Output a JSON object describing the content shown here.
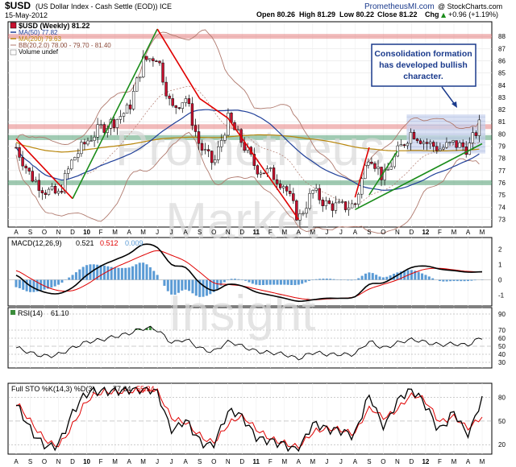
{
  "header": {
    "symbol": "$USD",
    "description": "(US Dollar Index - Cash Settle (EOD)) ICE",
    "date": "15-May-2012",
    "open": "Open 80.26",
    "high": "High 81.29",
    "low": "Low 80.22",
    "close": "Close 81.22",
    "chg_label": "Chg",
    "chg_value": "+0.96 (+1.19%)",
    "chg_arrow": "▲",
    "site": "PrometheusMI.com",
    "copyright": "@ StockCharts.com"
  },
  "legend": {
    "price": "$USD (Weekly) 81.22",
    "ma50": "MA(50) 77.82",
    "ma200": "MA(200) 79.63",
    "bb": "BB(20,2.0) 78.00 - 79.70 - 81.40",
    "volume": "Volume undef"
  },
  "annotation": "Consolidation formation has developed bullish character.",
  "annotation_lines": [
    "Consolidation formation",
    "has developed bullish",
    "character."
  ],
  "watermark": [
    "Prometheus",
    "Market",
    "Insight"
  ],
  "panels": {
    "macd": {
      "label": "MACD(12,26,9)",
      "v1": "0.521",
      "v2": "0.512",
      "v3": "0.009"
    },
    "rsi": {
      "label": "RSI(14)",
      "v1": "61.10"
    },
    "sto": {
      "label": "Full STO %K(14,3) %D(3)",
      "v1": "77.64",
      "v2": "55.34"
    }
  },
  "colors": {
    "up": "#ffffff",
    "down": "#c8102e",
    "candle_outline": "#000000",
    "ma50": "#1f3f99",
    "ma200": "#b8860b",
    "bb": "#b07a6e",
    "support_band": "#2e8b57",
    "resistance_band": "#e06666",
    "trend_red": "#e00000",
    "trend_green": "#1a8c1a",
    "annotation_border": "#1a3a8c",
    "annotation_text": "#1a3a8c",
    "macd_line": "#000000",
    "signal_line": "#e00000",
    "histogram": "#5b9bd5",
    "rsi_line": "#000000",
    "rsi_fill": "#3a8c3a",
    "sto_k": "#000000",
    "sto_d": "#e00000"
  },
  "chart_data": [
    {
      "type": "candlestick",
      "title": "$USD (Weekly) 81.22",
      "y_ticks": [
        "73",
        "74",
        "75",
        "76",
        "77",
        "78",
        "79",
        "80",
        "81",
        "82",
        "83",
        "84",
        "85",
        "86",
        "87",
        "88"
      ],
      "ylim": [
        72.5,
        89
      ],
      "x_ticks": [
        "A",
        "S",
        "O",
        "N",
        "D",
        "10",
        "F",
        "M",
        "A",
        "M",
        "J",
        "J",
        "A",
        "S",
        "O",
        "N",
        "D",
        "11",
        "F",
        "M",
        "A",
        "M",
        "J",
        "J",
        "A",
        "S",
        "O",
        "N",
        "D",
        "12",
        "F",
        "M",
        "A",
        "M"
      ],
      "close_path": [
        {
          "date": "2009-08",
          "close": 78.9
        },
        {
          "date": "2009-09",
          "close": 76.6
        },
        {
          "date": "2009-10",
          "close": 75.4
        },
        {
          "date": "2009-11",
          "close": 75.0
        },
        {
          "date": "2009-12",
          "close": 77.9
        },
        {
          "date": "2010-01",
          "close": 79.4
        },
        {
          "date": "2010-02",
          "close": 80.5
        },
        {
          "date": "2010-03",
          "close": 81.1
        },
        {
          "date": "2010-04",
          "close": 82.1
        },
        {
          "date": "2010-05",
          "close": 86.0
        },
        {
          "date": "2010-06",
          "close": 86.4
        },
        {
          "date": "2010-07",
          "close": 82.0
        },
        {
          "date": "2010-08",
          "close": 83.0
        },
        {
          "date": "2010-09",
          "close": 79.0
        },
        {
          "date": "2010-10",
          "close": 77.5
        },
        {
          "date": "2010-11",
          "close": 81.2
        },
        {
          "date": "2010-12",
          "close": 79.3
        },
        {
          "date": "2011-01",
          "close": 77.2
        },
        {
          "date": "2011-02",
          "close": 76.8
        },
        {
          "date": "2011-03",
          "close": 75.8
        },
        {
          "date": "2011-04",
          "close": 73.0
        },
        {
          "date": "2011-05",
          "close": 75.3
        },
        {
          "date": "2011-06",
          "close": 74.2
        },
        {
          "date": "2011-07",
          "close": 74.0
        },
        {
          "date": "2011-08",
          "close": 74.2
        },
        {
          "date": "2011-09",
          "close": 78.5
        },
        {
          "date": "2011-10",
          "close": 76.3
        },
        {
          "date": "2011-11",
          "close": 78.5
        },
        {
          "date": "2011-12",
          "close": 80.2
        },
        {
          "date": "2012-01",
          "close": 79.3
        },
        {
          "date": "2012-02",
          "close": 78.8
        },
        {
          "date": "2012-03",
          "close": 79.2
        },
        {
          "date": "2012-04",
          "close": 78.8
        },
        {
          "date": "2012-05",
          "close": 81.2
        }
      ],
      "horizontal_bands": [
        {
          "name": "resistance-top",
          "value": 88.0
        },
        {
          "name": "resistance-mid",
          "value": 80.6
        },
        {
          "name": "support-mid",
          "value": 79.7
        },
        {
          "name": "support-low",
          "value": 76.0
        }
      ],
      "trendlines": [
        {
          "color": "red",
          "from": {
            "date": "2009-08",
            "value": 79.6
          },
          "to": {
            "date": "2009-12",
            "value": 74.7
          }
        },
        {
          "color": "green",
          "from": {
            "date": "2009-12",
            "value": 74.7
          },
          "to": {
            "date": "2010-06",
            "value": 88.6
          }
        },
        {
          "color": "red",
          "from": {
            "date": "2010-06",
            "value": 88.6
          },
          "to": {
            "date": "2010-09",
            "value": 82.9
          }
        },
        {
          "color": "red",
          "from": {
            "date": "2010-09",
            "value": 82.9
          },
          "to": {
            "date": "2010-11",
            "value": 81.3
          }
        },
        {
          "color": "red",
          "from": {
            "date": "2010-11",
            "value": 81.3
          },
          "to": {
            "date": "2011-04",
            "value": 73.0
          }
        },
        {
          "color": "red",
          "from": {
            "date": "2011-08",
            "value": 74.8
          },
          "to": {
            "date": "2011-09",
            "value": 78.9
          }
        },
        {
          "color": "green",
          "from": {
            "date": "2011-08",
            "value": 73.8
          },
          "to": {
            "date": "2012-05",
            "value": 79.2
          }
        },
        {
          "color": "green",
          "from": {
            "date": "2011-09",
            "value": 75.0
          },
          "to": {
            "date": "2011-11",
            "value": 78.6
          }
        }
      ]
    },
    {
      "type": "line",
      "title": "MACD(12,26,9) 0.521, 0.512, 0.009",
      "y_ticks": [
        "-1",
        "0",
        "1",
        "2"
      ],
      "ylim": [
        -1.6,
        2.6
      ],
      "series": [
        {
          "name": "MACD",
          "values": [
            0.3,
            -0.4,
            -0.8,
            -0.9,
            -0.5,
            0.3,
            0.9,
            1.3,
            1.7,
            2.3,
            2.1,
            1.0,
            0.8,
            -0.2,
            -0.7,
            -0.3,
            -0.4,
            -0.8,
            -1.0,
            -1.2,
            -1.4,
            -1.3,
            -1.2,
            -1.2,
            -1.1,
            -0.3,
            -0.2,
            0.3,
            0.8,
            0.9,
            0.7,
            0.6,
            0.5,
            0.52
          ]
        },
        {
          "name": "Signal",
          "values": [
            0.6,
            0.1,
            -0.4,
            -0.7,
            -0.7,
            -0.3,
            0.3,
            0.8,
            1.2,
            1.6,
            1.9,
            1.6,
            1.2,
            0.5,
            -0.2,
            -0.3,
            -0.4,
            -0.6,
            -0.8,
            -1.0,
            -1.2,
            -1.3,
            -1.25,
            -1.2,
            -1.1,
            -0.6,
            -0.3,
            0.0,
            0.4,
            0.7,
            0.75,
            0.65,
            0.55,
            0.51
          ]
        }
      ]
    },
    {
      "type": "line",
      "title": "RSI(14) 61.10",
      "y_ticks": [
        "30",
        "40",
        "50",
        "60",
        "70",
        "90"
      ],
      "ylim": [
        25,
        95
      ],
      "series": [
        {
          "name": "RSI",
          "values": [
            48,
            42,
            38,
            40,
            48,
            55,
            58,
            62,
            66,
            72,
            70,
            55,
            58,
            48,
            44,
            55,
            50,
            44,
            42,
            40,
            35,
            42,
            40,
            40,
            41,
            55,
            48,
            54,
            58,
            55,
            52,
            53,
            52,
            61.1
          ]
        }
      ]
    },
    {
      "type": "line",
      "title": "Full STO %K(14,3) %D(3) 77.64, 55.34",
      "y_ticks": [
        "20",
        "50",
        "80"
      ],
      "ylim": [
        10,
        95
      ],
      "series": [
        {
          "name": "%K",
          "values": [
            70,
            40,
            20,
            22,
            60,
            85,
            88,
            88,
            90,
            90,
            85,
            40,
            50,
            25,
            22,
            60,
            55,
            30,
            25,
            20,
            15,
            45,
            40,
            38,
            35,
            80,
            45,
            75,
            88,
            70,
            40,
            60,
            35,
            77.64
          ]
        },
        {
          "name": "%D",
          "values": [
            72,
            50,
            28,
            20,
            45,
            75,
            86,
            87,
            88,
            89,
            87,
            55,
            48,
            32,
            24,
            45,
            55,
            40,
            28,
            22,
            18,
            35,
            40,
            39,
            36,
            65,
            55,
            65,
            82,
            75,
            50,
            55,
            42,
            55.34
          ]
        }
      ]
    }
  ]
}
